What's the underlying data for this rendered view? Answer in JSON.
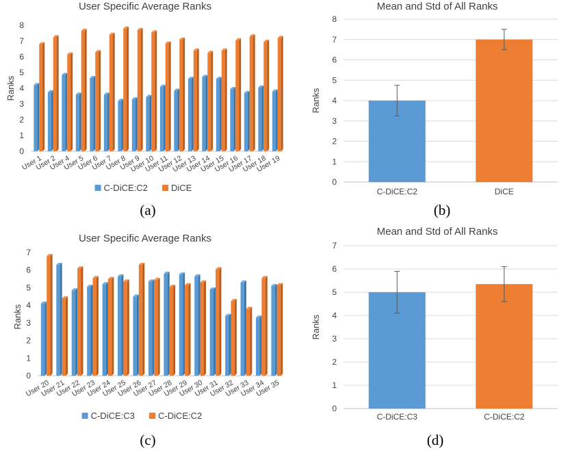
{
  "colors": {
    "blue": "#5b9bd5",
    "blue_side": "#3f76a8",
    "orange": "#ed7d31",
    "orange_side": "#b85c1e",
    "err": "#595959"
  },
  "chart_data": [
    {
      "panel": "(a)",
      "type": "bar",
      "title": "User Specific Average Ranks",
      "ylabel": "Ranks",
      "ylim": [
        0,
        8
      ],
      "yticks": [
        0,
        1,
        2,
        3,
        4,
        5,
        6,
        7,
        8
      ],
      "grid": false,
      "legend_position": "bottom",
      "categories": [
        "User 1",
        "User 2",
        "User 4",
        "User 5",
        "User 6",
        "User 7",
        "User 8",
        "User 9",
        "User 10",
        "User 11",
        "User 12",
        "User 13",
        "User 14",
        "User 15",
        "User 16",
        "User 17",
        "User 18",
        "User 19"
      ],
      "series": [
        {
          "name": "C-DiCE:C2",
          "color": "blue",
          "values": [
            4.2,
            3.75,
            4.85,
            3.6,
            4.65,
            3.6,
            3.2,
            3.3,
            3.45,
            4.1,
            3.85,
            4.6,
            4.72,
            4.6,
            3.95,
            3.7,
            4.05,
            3.8
          ]
        },
        {
          "name": "DiCE",
          "color": "orange",
          "values": [
            6.8,
            7.25,
            6.15,
            7.65,
            6.3,
            7.4,
            7.8,
            7.7,
            7.55,
            6.85,
            7.1,
            6.4,
            6.25,
            6.4,
            7.05,
            7.3,
            6.95,
            7.2
          ]
        }
      ]
    },
    {
      "panel": "(b)",
      "type": "bar",
      "title": "Mean and Std of All Ranks",
      "ylabel": "Ranks",
      "ylim": [
        0,
        8
      ],
      "yticks": [
        0,
        1,
        2,
        3,
        4,
        5,
        6,
        7,
        8
      ],
      "grid": true,
      "categories": [
        "C-DiCE:C2",
        "DiCE"
      ],
      "values": [
        4.0,
        7.0
      ],
      "std": [
        0.75,
        0.5
      ],
      "colors": [
        "blue",
        "orange"
      ]
    },
    {
      "panel": "(c)",
      "type": "bar",
      "title": "User Specific Average Ranks",
      "ylabel": "Ranks",
      "ylim": [
        0,
        7
      ],
      "yticks": [
        0,
        1,
        2,
        3,
        4,
        5,
        6,
        7
      ],
      "grid": false,
      "legend_position": "bottom",
      "categories": [
        "User 20",
        "User 21",
        "User 22",
        "User 23",
        "User 24",
        "User 25",
        "User 26",
        "User 27",
        "User 28",
        "User 29",
        "User 30",
        "User 31",
        "User 32",
        "User 33",
        "User 34",
        "User 35"
      ],
      "series": [
        {
          "name": "C-DiCE:C3",
          "color": "blue",
          "values": [
            4.1,
            6.3,
            4.85,
            5.05,
            5.2,
            5.65,
            4.5,
            5.35,
            5.8,
            5.75,
            5.65,
            4.9,
            3.4,
            5.3,
            3.3,
            5.1
          ]
        },
        {
          "name": "C-DiCE:C2",
          "color": "orange",
          "values": [
            6.8,
            4.4,
            6.1,
            5.55,
            5.5,
            5.35,
            6.3,
            5.45,
            5.05,
            5.15,
            5.3,
            6.05,
            4.25,
            3.8,
            5.55,
            5.15
          ]
        }
      ]
    },
    {
      "panel": "(d)",
      "type": "bar",
      "title": "Mean and Std of All Ranks",
      "ylabel": "Ranks",
      "ylim": [
        0,
        7
      ],
      "yticks": [
        0,
        1,
        2,
        3,
        4,
        5,
        6,
        7
      ],
      "grid": true,
      "categories": [
        "C-DiCE:C3",
        "C-DiCE:C2"
      ],
      "values": [
        5.0,
        5.35
      ],
      "std": [
        0.9,
        0.75
      ],
      "colors": [
        "blue",
        "orange"
      ]
    }
  ]
}
